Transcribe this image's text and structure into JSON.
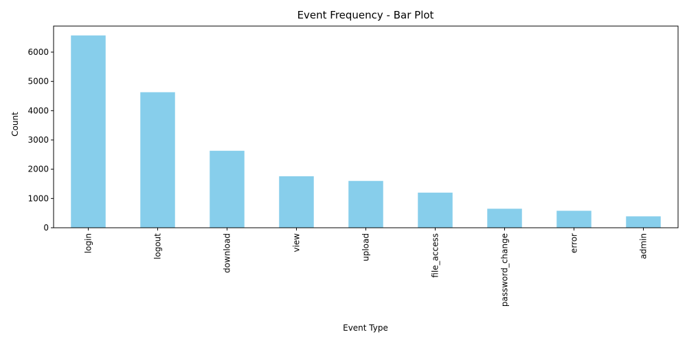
{
  "chart_data": {
    "type": "bar",
    "title": "Event Frequency - Bar Plot",
    "xlabel": "Event Type",
    "ylabel": "Count",
    "categories": [
      "login",
      "logout",
      "download",
      "view",
      "upload",
      "file_access",
      "password_change",
      "error",
      "admin"
    ],
    "values": [
      6570,
      4630,
      2630,
      1760,
      1600,
      1200,
      650,
      580,
      390
    ],
    "ylim": [
      0,
      6890
    ],
    "yticks": [
      0,
      1000,
      2000,
      3000,
      4000,
      5000,
      6000
    ],
    "ytick_labels": [
      "0",
      "1000",
      "2000",
      "3000",
      "4000",
      "5000",
      "6000"
    ],
    "x_tick_rotation": "vertical",
    "grid": false,
    "legend": "none",
    "colors": {
      "bar": "#87CEEB",
      "axis": "#000000",
      "text": "#000000",
      "background": "#ffffff"
    }
  }
}
